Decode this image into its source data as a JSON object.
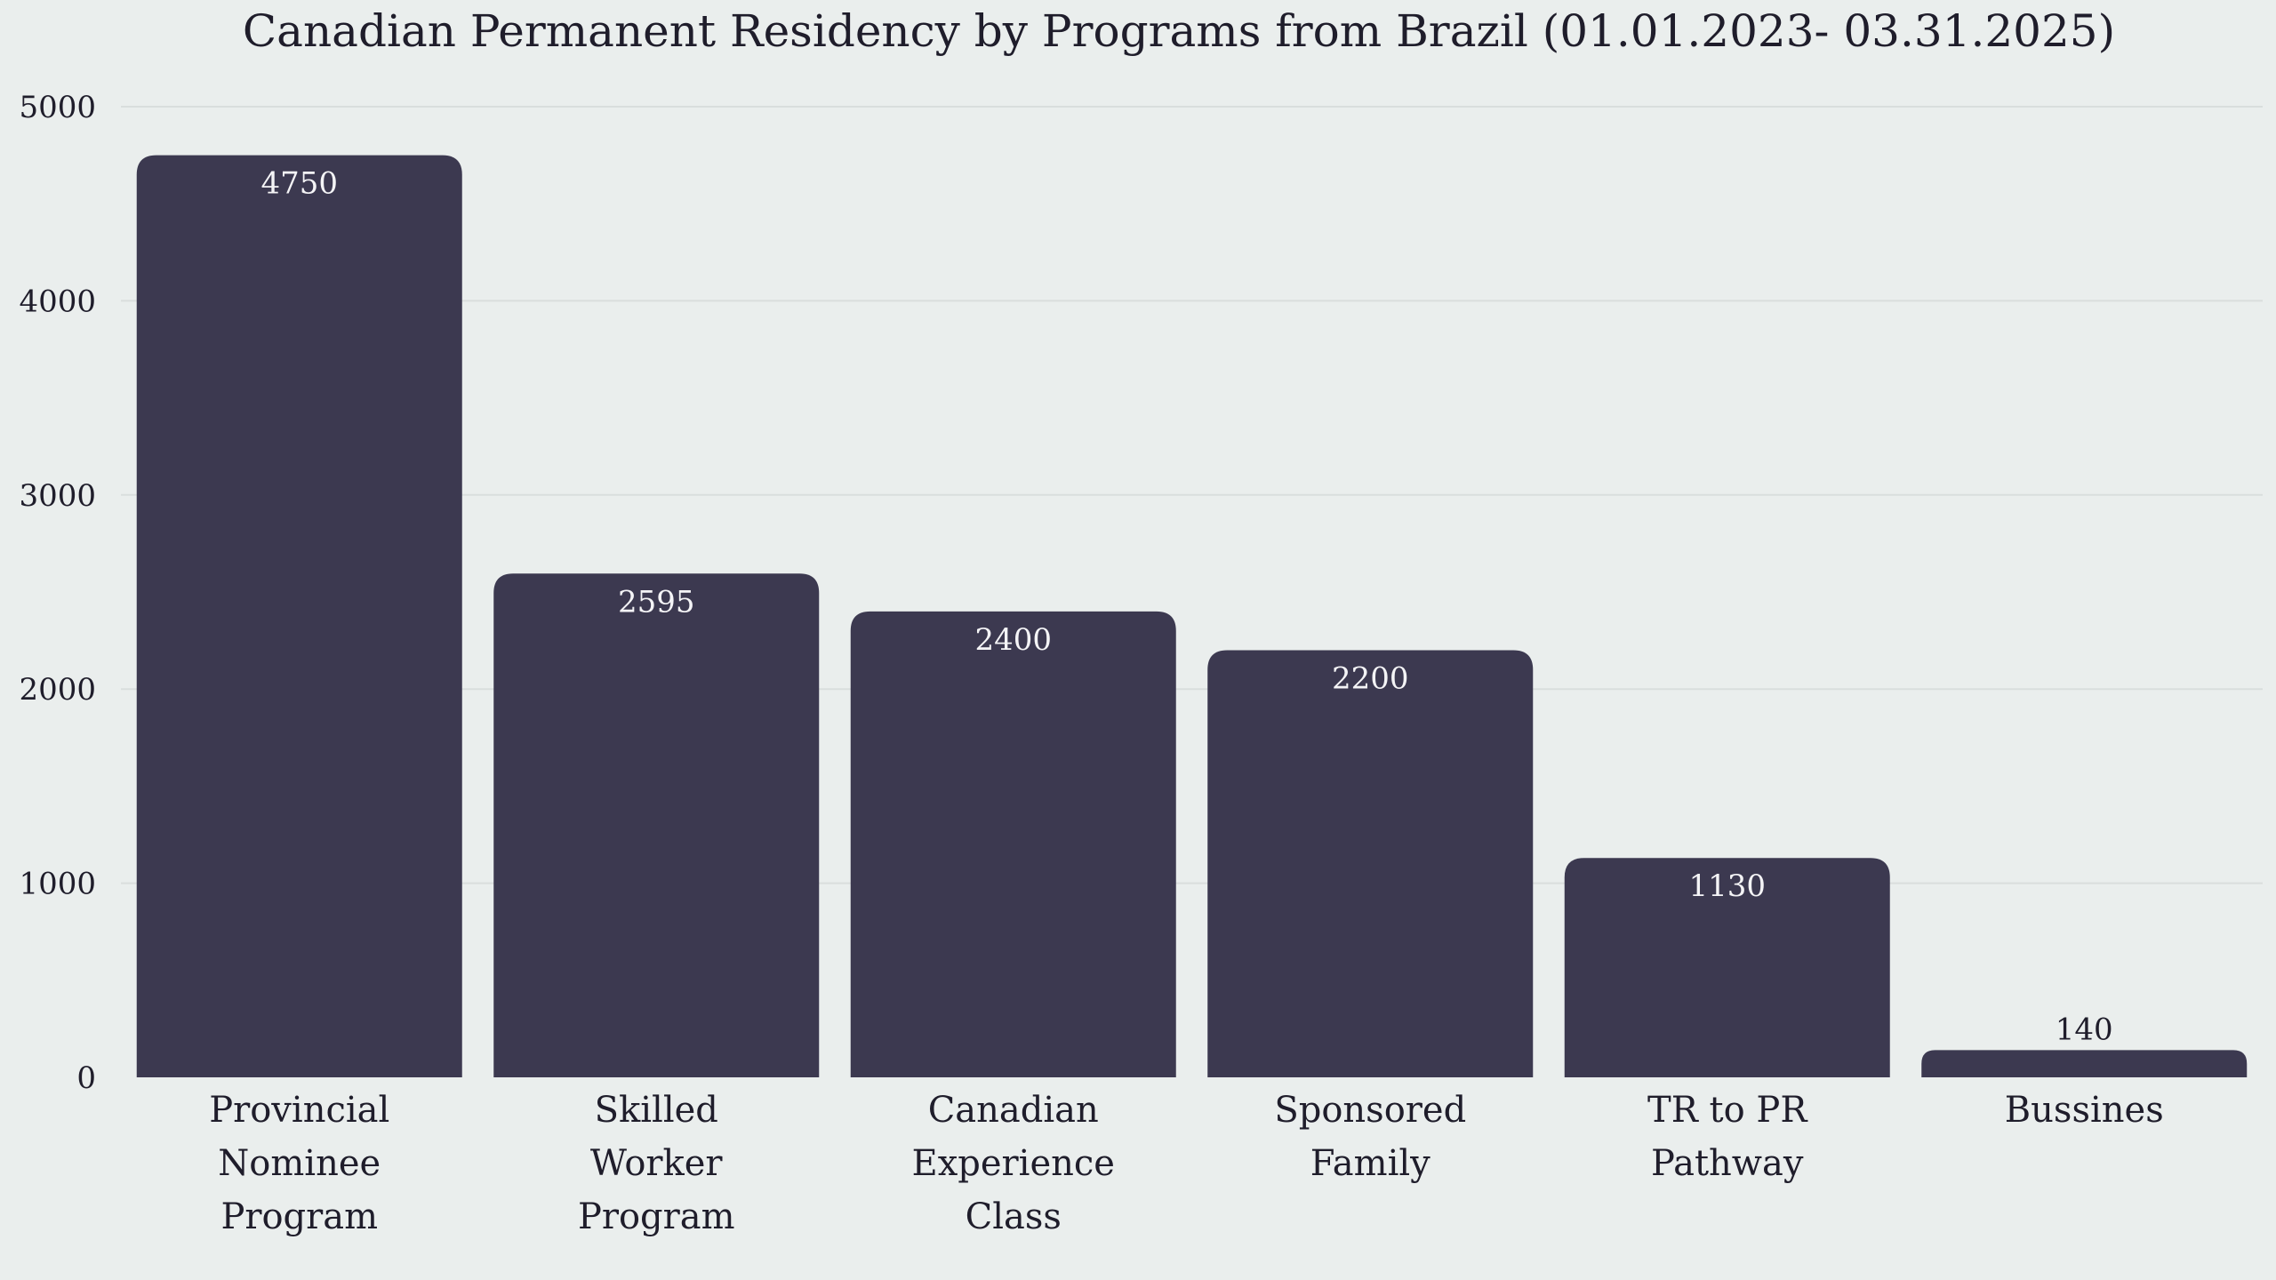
{
  "chart_data": {
    "type": "bar",
    "title": "Canadian Permanent Residency by Programs from Brazil (01.01.2023- 03.31.2025)",
    "categories": [
      "Provincial Nominee Program",
      "Skilled Worker Program",
      "Canadian Experience Class",
      "Sponsored Family",
      "TR to PR Pathway",
      "Bussines"
    ],
    "category_lines": [
      [
        "Provincial",
        "Nominee",
        "Program"
      ],
      [
        "Skilled",
        "Worker",
        "Program"
      ],
      [
        "Canadian",
        "Experience",
        "Class"
      ],
      [
        "Sponsored",
        "Family"
      ],
      [
        "TR to PR",
        "Pathway"
      ],
      [
        "Bussines"
      ]
    ],
    "values": [
      4750,
      2595,
      2400,
      2200,
      1130,
      140
    ],
    "data_labels": [
      "4750",
      "2595",
      "2400",
      "2200",
      "1130",
      "140"
    ],
    "xlabel": "",
    "ylabel": "",
    "ylim": [
      0,
      5000
    ],
    "yticks": [
      0,
      1000,
      2000,
      3000,
      4000,
      5000
    ],
    "grid": true,
    "legend": "none",
    "bar_color": "#3c3950",
    "background_color": "#eaeeed"
  }
}
